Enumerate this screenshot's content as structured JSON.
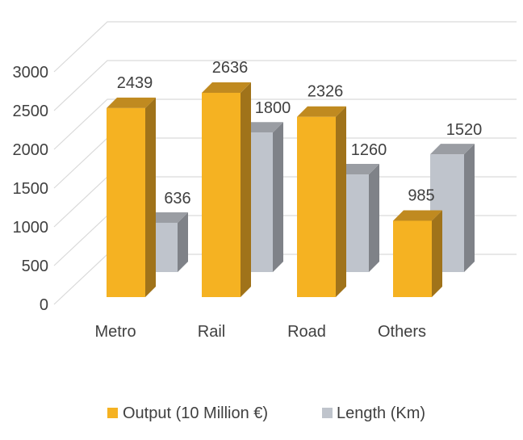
{
  "chart_data": {
    "type": "bar",
    "style": "3d-clustered-column",
    "categories": [
      "Metro",
      "Rail",
      "Road",
      "Others"
    ],
    "series": [
      {
        "name": "Output (10 Million €)",
        "values": [
          2439,
          2636,
          2326,
          985
        ],
        "color": "#F5B222"
      },
      {
        "name": "Length (Km)",
        "values": [
          636,
          1800,
          1260,
          1520
        ],
        "color": "#BFC4CC"
      }
    ],
    "ylim": [
      0,
      3000
    ],
    "yticks": [
      "0",
      "500",
      "1000",
      "1500",
      "2000",
      "2500",
      "3000"
    ],
    "grid": true,
    "data_labels": true,
    "legend": "bottom"
  }
}
